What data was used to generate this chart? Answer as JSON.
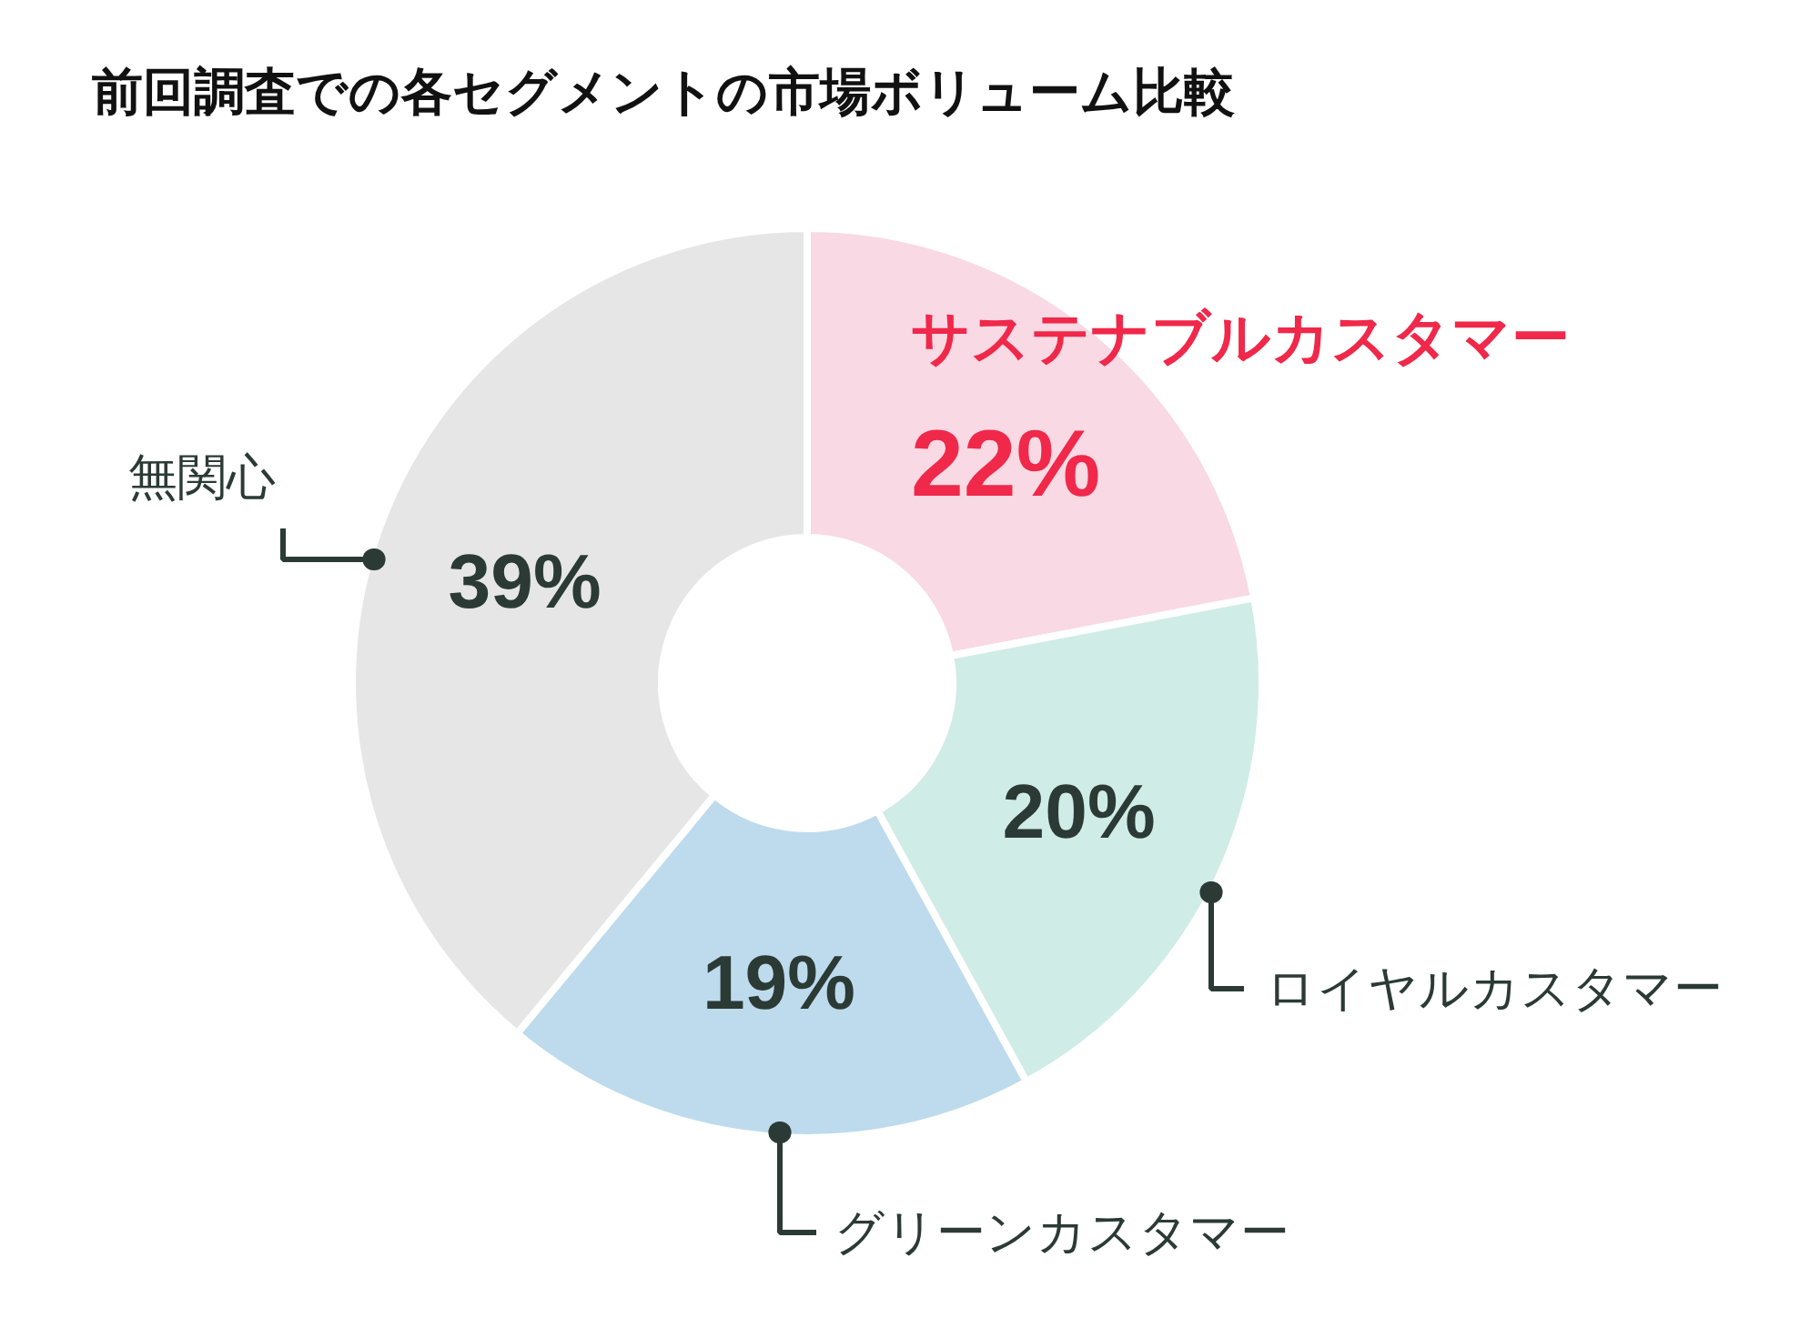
{
  "chart_data": {
    "type": "donut",
    "title": "前回調査での各セグメントの市場ボリューム比較",
    "categories": [
      "サステナブルカスタマー",
      "ロイヤルカスタマー",
      "グリーンカスタマー",
      "無関心"
    ],
    "values": [
      22,
      20,
      19,
      39
    ],
    "colors": [
      "#f9d9e3",
      "#d0ece6",
      "#bddbec",
      "#e6e6e6"
    ],
    "value_labels": [
      "22%",
      "20%",
      "19%",
      "39%"
    ]
  }
}
